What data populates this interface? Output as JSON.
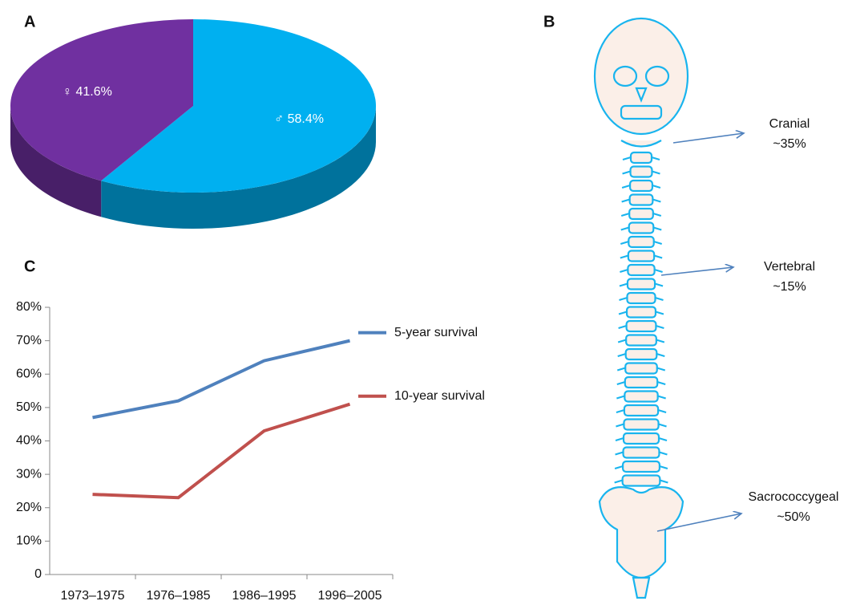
{
  "chart_data": [
    {
      "type": "pie",
      "label": "A",
      "categories": [
        "♀",
        "♂"
      ],
      "values": [
        41.6,
        58.4
      ],
      "value_labels": [
        "41.6%",
        "58.4%"
      ],
      "colors": [
        "#7030a0",
        "#00b0f0"
      ]
    },
    {
      "type": "line",
      "label": "C",
      "categories": [
        "1973–1975",
        "1976–1985",
        "1986–1995",
        "1996–2005"
      ],
      "series": [
        {
          "name": "5-year survival",
          "color": "#4f81bd",
          "values": [
            47,
            52,
            64,
            70
          ]
        },
        {
          "name": "10-year survival",
          "color": "#c0504d",
          "values": [
            24,
            23,
            43,
            51
          ]
        }
      ],
      "ylim": [
        0,
        80
      ],
      "yticks": [
        0,
        {
          "value": 10,
          "label": "10%"
        },
        {
          "value": 20,
          "label": "20%"
        },
        {
          "value": 30,
          "label": "30%"
        },
        {
          "value": 40,
          "label": "40%"
        },
        {
          "value": 50,
          "label": "50%"
        },
        {
          "value": 60,
          "label": "60%"
        },
        {
          "value": 70,
          "label": "70%"
        },
        {
          "value": 80,
          "label": "80%"
        }
      ],
      "legend": "right"
    }
  ],
  "diagram": {
    "label": "B",
    "regions": [
      {
        "name": "Cranial",
        "share": "~35%"
      },
      {
        "name": "Vertebral",
        "share": "~15%"
      },
      {
        "name": "Sacrococcygeal",
        "share": "~50%"
      }
    ]
  }
}
